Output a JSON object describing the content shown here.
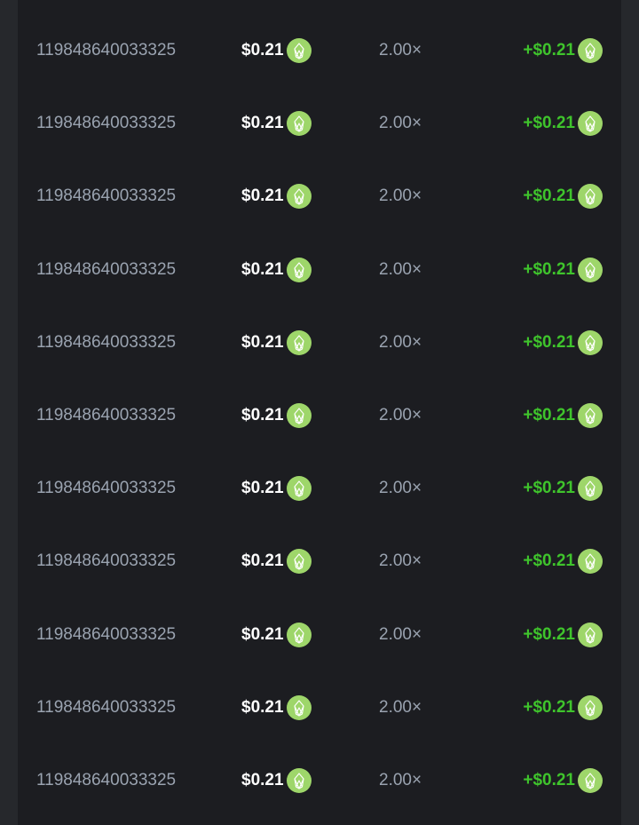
{
  "coin_icon": "eos-coin-icon",
  "colors": {
    "coin": "#9ed66a",
    "profit": "#3fc42c",
    "muted": "#9aa3b0"
  },
  "rows": [
    {
      "id": "119848640033325",
      "bet": "$0.21",
      "multiplier": "2.00×",
      "payout": "+$0.21"
    },
    {
      "id": "119848640033325",
      "bet": "$0.21",
      "multiplier": "2.00×",
      "payout": "+$0.21"
    },
    {
      "id": "119848640033325",
      "bet": "$0.21",
      "multiplier": "2.00×",
      "payout": "+$0.21"
    },
    {
      "id": "119848640033325",
      "bet": "$0.21",
      "multiplier": "2.00×",
      "payout": "+$0.21"
    },
    {
      "id": "119848640033325",
      "bet": "$0.21",
      "multiplier": "2.00×",
      "payout": "+$0.21"
    },
    {
      "id": "119848640033325",
      "bet": "$0.21",
      "multiplier": "2.00×",
      "payout": "+$0.21"
    },
    {
      "id": "119848640033325",
      "bet": "$0.21",
      "multiplier": "2.00×",
      "payout": "+$0.21"
    },
    {
      "id": "119848640033325",
      "bet": "$0.21",
      "multiplier": "2.00×",
      "payout": "+$0.21"
    },
    {
      "id": "119848640033325",
      "bet": "$0.21",
      "multiplier": "2.00×",
      "payout": "+$0.21"
    },
    {
      "id": "119848640033325",
      "bet": "$0.21",
      "multiplier": "2.00×",
      "payout": "+$0.21"
    },
    {
      "id": "119848640033325",
      "bet": "$0.21",
      "multiplier": "2.00×",
      "payout": "+$0.21"
    }
  ]
}
